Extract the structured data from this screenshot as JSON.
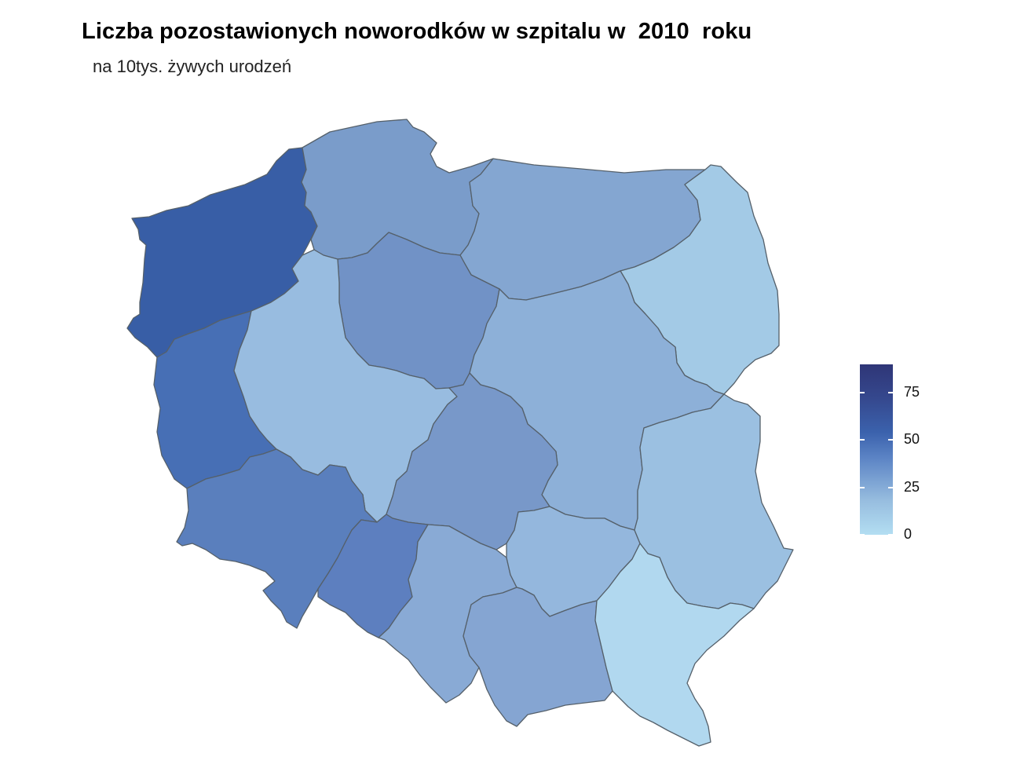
{
  "title": "Liczba pozostawionych noworodków w szpitalu w  2010  roku",
  "subtitle": "na 10tys. żywych urodzeń",
  "legend": {
    "min": 0,
    "max": 90,
    "ticks": [
      "0",
      "25",
      "50",
      "75"
    ],
    "color_low": "#b3def2",
    "color_high": "#2f3677"
  },
  "regions": [
    {
      "name": "zachodniopomorskie",
      "fill": "#385ea6"
    },
    {
      "name": "pomorskie",
      "fill": "#7a9cca"
    },
    {
      "name": "warmińsko-mazurskie",
      "fill": "#84a6d1"
    },
    {
      "name": "podlaskie",
      "fill": "#a3cae6"
    },
    {
      "name": "kujawsko-pomorskie",
      "fill": "#7192c6"
    },
    {
      "name": "lubuskie",
      "fill": "#476fb5"
    },
    {
      "name": "wielkopolskie",
      "fill": "#98bce0"
    },
    {
      "name": "mazowieckie",
      "fill": "#8db0d8"
    },
    {
      "name": "łódzkie",
      "fill": "#7898c9"
    },
    {
      "name": "dolnośląskie",
      "fill": "#5a7fbd"
    },
    {
      "name": "opolskie",
      "fill": "#5d7fbf"
    },
    {
      "name": "śląskie",
      "fill": "#89aad5"
    },
    {
      "name": "świętokrzyskie",
      "fill": "#94b7dd"
    },
    {
      "name": "lubelskie",
      "fill": "#9bc0e1"
    },
    {
      "name": "małopolskie",
      "fill": "#85a5d2"
    },
    {
      "name": "podkarpackie",
      "fill": "#b1d8ef"
    }
  ]
}
